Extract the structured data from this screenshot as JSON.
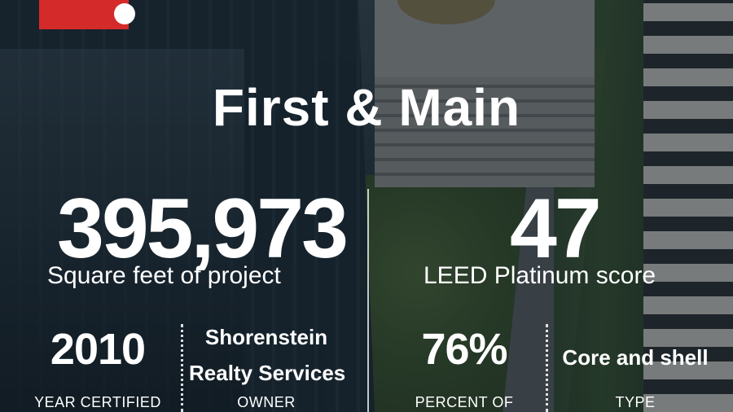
{
  "title": "First & Main",
  "stats": {
    "square_feet": {
      "value": "395,973",
      "label": "Square feet of project"
    },
    "leed": {
      "value": "47",
      "label": "LEED Platinum score"
    },
    "year": {
      "value": "2010",
      "label": "YEAR CERTIFIED"
    },
    "owner": {
      "line1": "Shorenstein",
      "line2": "Realty Services",
      "label": "OWNER"
    },
    "percent": {
      "value": "76%",
      "label": "PERCENT OF"
    },
    "type": {
      "value": "Core and shell",
      "label": "TYPE"
    }
  },
  "colors": {
    "brand_red": "#d42a2a",
    "text": "#ffffff"
  }
}
